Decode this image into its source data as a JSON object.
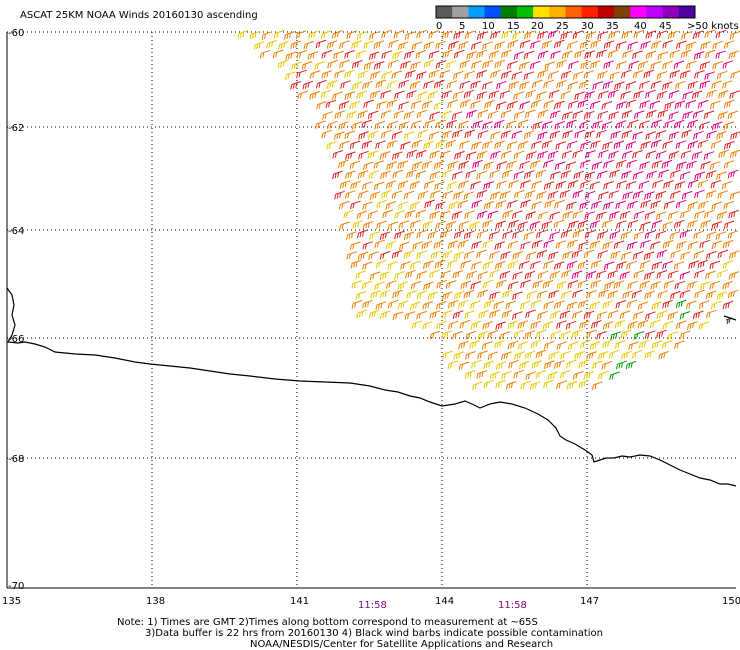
{
  "title": "ASCAT 25KM NOAA Winds 20160130 ascending",
  "legend": {
    "labels": [
      "0",
      "5",
      "10",
      "15",
      "20",
      "25",
      "30",
      "35",
      "40",
      "45",
      ">50 knots"
    ],
    "colors": [
      "#5a5a5a",
      "#a0a0a0",
      "#00a0ff",
      "#0050ff",
      "#008000",
      "#00c000",
      "#ffe000",
      "#ffb000",
      "#ff6000",
      "#ff2000",
      "#c00000",
      "#804000",
      "#ff00ff",
      "#c000ff",
      "#9000c0",
      "#5000a0"
    ]
  },
  "axes": {
    "lat_labels": [
      "-60",
      "-62",
      "-64",
      "-66",
      "-68",
      "-70"
    ],
    "lon_labels": [
      "135",
      "138",
      "141",
      "144",
      "147",
      "150"
    ]
  },
  "times": [
    "11:58",
    "11:58"
  ],
  "notes": [
    "Note: 1) Times are GMT 2)Times along bottom correspond to measurement at ~65S",
    "3)Data buffer is 22 hrs from 20160130 4) Black wind barbs indicate possible contamination",
    "NOAA/NESDIS/Center for Satellite Applications and Research"
  ],
  "colors": {
    "coastline": "#000000",
    "grid": "#000000",
    "barb_yellow": "#e8c800",
    "barb_orange": "#f08000",
    "barb_red": "#e02020",
    "barb_magenta": "#e0007a",
    "barb_green": "#00a000",
    "time_label": "#7a0a7a"
  }
}
